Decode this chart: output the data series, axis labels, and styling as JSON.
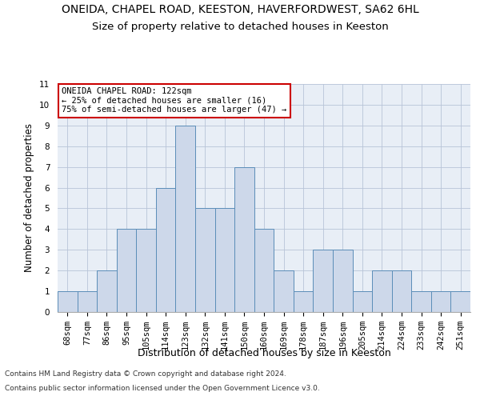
{
  "title1": "ONEIDA, CHAPEL ROAD, KEESTON, HAVERFORDWEST, SA62 6HL",
  "title2": "Size of property relative to detached houses in Keeston",
  "xlabel": "Distribution of detached houses by size in Keeston",
  "ylabel": "Number of detached properties",
  "footer1": "Contains HM Land Registry data © Crown copyright and database right 2024.",
  "footer2": "Contains public sector information licensed under the Open Government Licence v3.0.",
  "annotation_title": "ONEIDA CHAPEL ROAD: 122sqm",
  "annotation_line2": "← 25% of detached houses are smaller (16)",
  "annotation_line3": "75% of semi-detached houses are larger (47) →",
  "bar_labels": [
    "68sqm",
    "77sqm",
    "86sqm",
    "95sqm",
    "105sqm",
    "114sqm",
    "123sqm",
    "132sqm",
    "141sqm",
    "150sqm",
    "160sqm",
    "169sqm",
    "178sqm",
    "187sqm",
    "196sqm",
    "205sqm",
    "214sqm",
    "224sqm",
    "233sqm",
    "242sqm",
    "251sqm"
  ],
  "bar_values": [
    1,
    1,
    2,
    4,
    4,
    6,
    9,
    5,
    5,
    7,
    4,
    2,
    1,
    3,
    3,
    1,
    2,
    2,
    1,
    1,
    1
  ],
  "bar_color": "#cdd8ea",
  "bar_edge_color": "#5b8db8",
  "ylim": [
    0,
    11
  ],
  "yticks": [
    0,
    1,
    2,
    3,
    4,
    5,
    6,
    7,
    8,
    9,
    10,
    11
  ],
  "grid_color": "#b8c4d8",
  "bg_color": "#e8eef6",
  "annotation_box_facecolor": "white",
  "annotation_box_edgecolor": "#cc0000",
  "title1_fontsize": 10,
  "title2_fontsize": 9.5,
  "xlabel_fontsize": 9,
  "ylabel_fontsize": 8.5,
  "tick_fontsize": 7.5,
  "annotation_fontsize": 7.5,
  "footer_fontsize": 6.5
}
